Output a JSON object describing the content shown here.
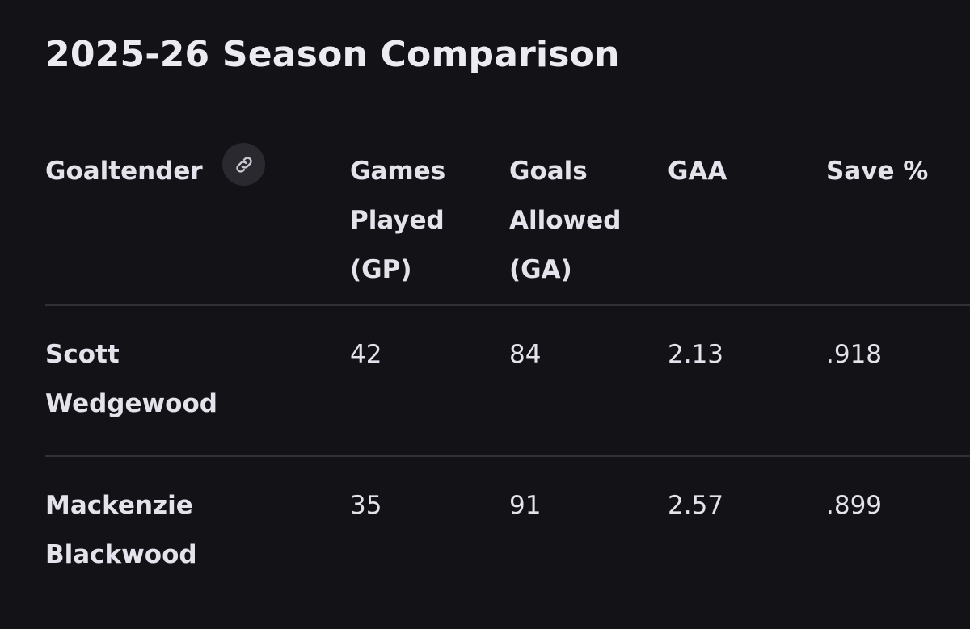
{
  "title": "2025-26 Season Comparison",
  "icons": {
    "link": "link-icon"
  },
  "table": {
    "headers": [
      {
        "key": "goaltender",
        "lines": [
          "Goaltender"
        ]
      },
      {
        "key": "gp",
        "lines": [
          "Games",
          "Played",
          "(GP)"
        ]
      },
      {
        "key": "ga",
        "lines": [
          "Goals",
          "Allowed",
          "(GA)"
        ]
      },
      {
        "key": "gaa",
        "lines": [
          "GAA"
        ]
      },
      {
        "key": "sv",
        "lines": [
          "Save %"
        ]
      }
    ],
    "rows": [
      {
        "name_lines": [
          "Scott",
          "Wedgewood"
        ],
        "gp": "42",
        "ga": "84",
        "gaa": "2.13",
        "sv": ".918"
      },
      {
        "name_lines": [
          "Mackenzie",
          "Blackwood"
        ],
        "gp": "35",
        "ga": "91",
        "gaa": "2.57",
        "sv": ".899"
      }
    ]
  }
}
